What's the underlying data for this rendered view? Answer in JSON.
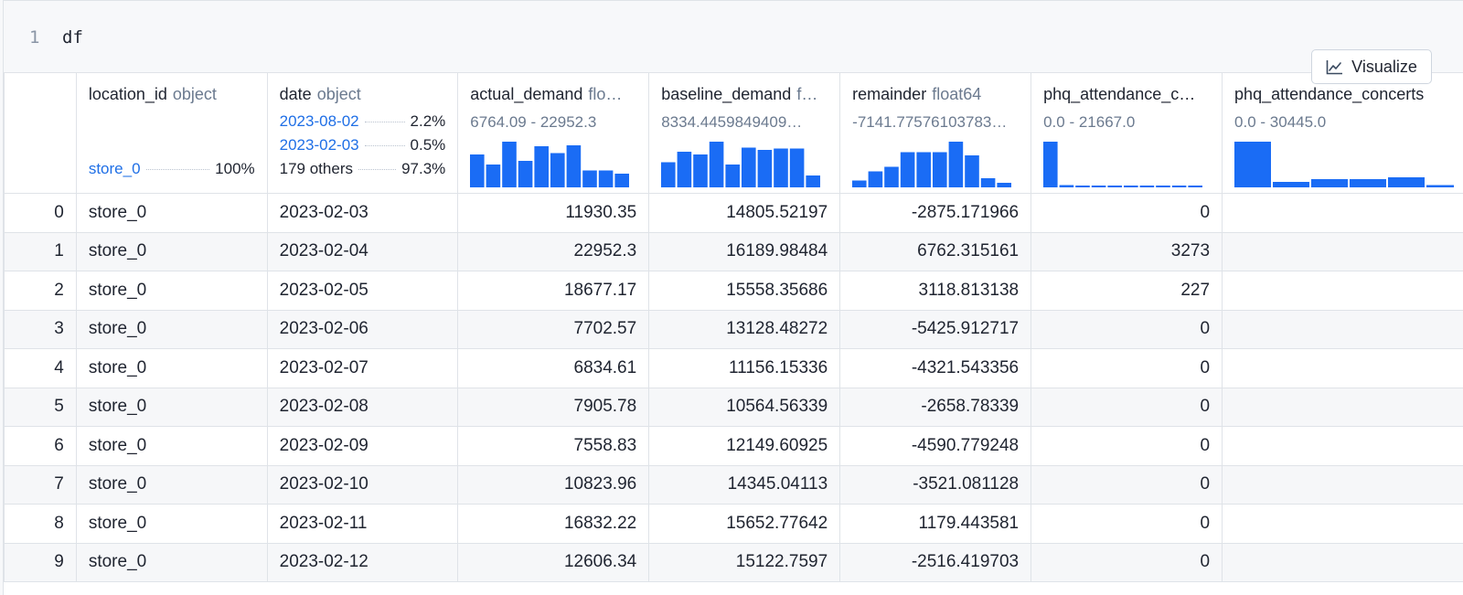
{
  "code": {
    "line_number": "1",
    "text": "df"
  },
  "visualize_button": {
    "label": "Visualize",
    "icon": "line-chart-icon"
  },
  "colors": {
    "accent": "#1f6fe6",
    "bar": "#1a6cf5",
    "muted": "#6b7a8f"
  },
  "columns": [
    {
      "name": "location_id",
      "type": "object",
      "summary": {
        "kind": "categorical",
        "items": [
          {
            "label": "store_0",
            "pct": "100%",
            "link": true
          }
        ]
      }
    },
    {
      "name": "date",
      "type": "object",
      "summary": {
        "kind": "categorical",
        "items": [
          {
            "label": "2023-08-02",
            "pct": "2.2%",
            "link": true
          },
          {
            "label": "2023-02-03",
            "pct": "0.5%",
            "link": true
          },
          {
            "label": "179 others",
            "pct": "97.3%",
            "link": false
          }
        ]
      }
    },
    {
      "name": "actual_demand",
      "type": "flo…",
      "summary": {
        "kind": "numeric",
        "range": "6764.09 - 22952.3",
        "hist": [
          0.72,
          0.5,
          1.0,
          0.58,
          0.9,
          0.75,
          0.92,
          0.37,
          0.37,
          0.3
        ]
      }
    },
    {
      "name": "baseline_demand",
      "type": "f…",
      "summary": {
        "kind": "numeric",
        "range": "8334.4459849409…",
        "hist": [
          0.55,
          0.78,
          0.72,
          1.0,
          0.5,
          0.87,
          0.82,
          0.85,
          0.85,
          0.26
        ]
      }
    },
    {
      "name": "remainder",
      "type": "float64",
      "summary": {
        "kind": "numeric",
        "range": "-7141.77576103783…",
        "hist": [
          0.15,
          0.35,
          0.45,
          0.77,
          0.77,
          0.77,
          1.0,
          0.7,
          0.2,
          0.1
        ]
      }
    },
    {
      "name": "phq_attendance_c…",
      "type": "",
      "summary": {
        "kind": "numeric",
        "range": "0.0 - 21667.0",
        "hist": [
          1.0,
          0.05,
          0.03,
          0.03,
          0.03,
          0.03,
          0.03,
          0.03,
          0.03,
          0.04
        ]
      }
    },
    {
      "name": "phq_attendance_concerts",
      "type": "",
      "summary": {
        "kind": "numeric",
        "range": "0.0 - 30445.0",
        "hist": [
          1.0,
          0.12,
          0.18,
          0.18,
          0.22,
          0.05
        ]
      }
    }
  ],
  "rows": [
    {
      "index": "0",
      "location_id": "store_0",
      "date": "2023-02-03",
      "actual_demand": "11930.35",
      "baseline_demand": "14805.52197",
      "remainder": "-2875.171966",
      "phq_attendance_c": "0",
      "phq_attendance_concerts": ""
    },
    {
      "index": "1",
      "location_id": "store_0",
      "date": "2023-02-04",
      "actual_demand": "22952.3",
      "baseline_demand": "16189.98484",
      "remainder": "6762.315161",
      "phq_attendance_c": "3273",
      "phq_attendance_concerts": ""
    },
    {
      "index": "2",
      "location_id": "store_0",
      "date": "2023-02-05",
      "actual_demand": "18677.17",
      "baseline_demand": "15558.35686",
      "remainder": "3118.813138",
      "phq_attendance_c": "227",
      "phq_attendance_concerts": ""
    },
    {
      "index": "3",
      "location_id": "store_0",
      "date": "2023-02-06",
      "actual_demand": "7702.57",
      "baseline_demand": "13128.48272",
      "remainder": "-5425.912717",
      "phq_attendance_c": "0",
      "phq_attendance_concerts": ""
    },
    {
      "index": "4",
      "location_id": "store_0",
      "date": "2023-02-07",
      "actual_demand": "6834.61",
      "baseline_demand": "11156.15336",
      "remainder": "-4321.543356",
      "phq_attendance_c": "0",
      "phq_attendance_concerts": ""
    },
    {
      "index": "5",
      "location_id": "store_0",
      "date": "2023-02-08",
      "actual_demand": "7905.78",
      "baseline_demand": "10564.56339",
      "remainder": "-2658.78339",
      "phq_attendance_c": "0",
      "phq_attendance_concerts": ""
    },
    {
      "index": "6",
      "location_id": "store_0",
      "date": "2023-02-09",
      "actual_demand": "7558.83",
      "baseline_demand": "12149.60925",
      "remainder": "-4590.779248",
      "phq_attendance_c": "0",
      "phq_attendance_concerts": ""
    },
    {
      "index": "7",
      "location_id": "store_0",
      "date": "2023-02-10",
      "actual_demand": "10823.96",
      "baseline_demand": "14345.04113",
      "remainder": "-3521.081128",
      "phq_attendance_c": "0",
      "phq_attendance_concerts": ""
    },
    {
      "index": "8",
      "location_id": "store_0",
      "date": "2023-02-11",
      "actual_demand": "16832.22",
      "baseline_demand": "15652.77642",
      "remainder": "1179.443581",
      "phq_attendance_c": "0",
      "phq_attendance_concerts": ""
    },
    {
      "index": "9",
      "location_id": "store_0",
      "date": "2023-02-12",
      "actual_demand": "12606.34",
      "baseline_demand": "15122.7597",
      "remainder": "-2516.419703",
      "phq_attendance_c": "0",
      "phq_attendance_concerts": ""
    }
  ]
}
